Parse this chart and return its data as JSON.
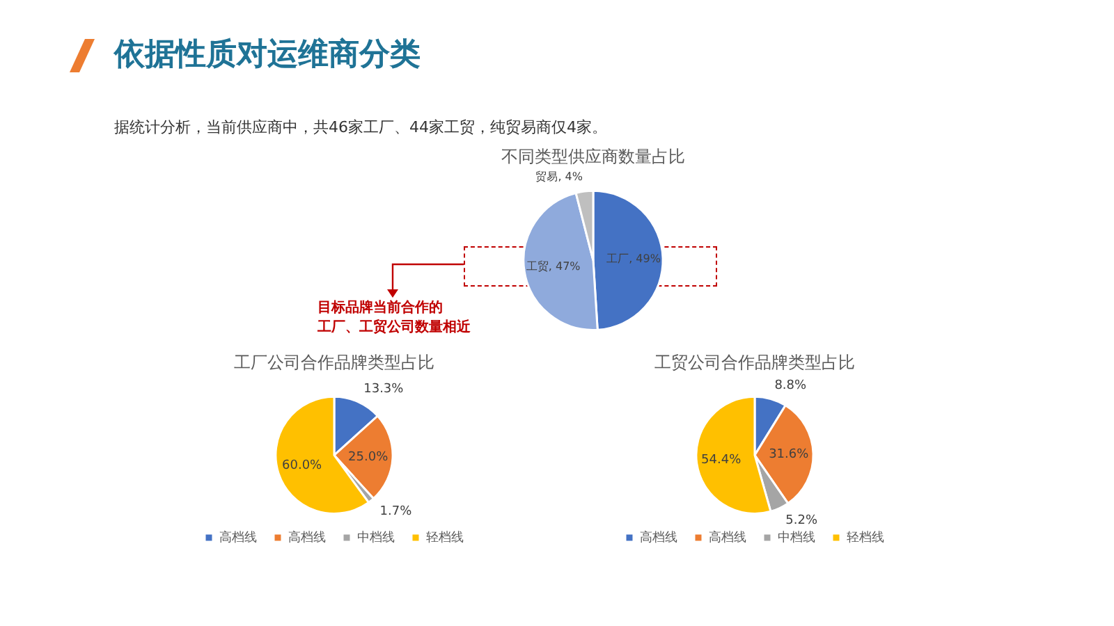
{
  "chart_data": [
    {
      "type": "pie",
      "title": "不同类型供应商数量占比",
      "categories": [
        "工厂",
        "工贸",
        "贸易"
      ],
      "values": [
        49,
        47,
        4
      ],
      "colors": [
        "#4472c4",
        "#8faadc",
        "#bfbfbf"
      ],
      "value_labels": [
        "49%",
        "47%",
        "4%"
      ],
      "legend": false,
      "annotations": [
        "依据性质对运维商分类",
        "据统计分析，当前供应商中，共46家工厂、44家工贸，纯贸易商仅4家。",
        "目标品牌当前合作的",
        "工厂、工贸公司数量相近"
      ]
    },
    {
      "type": "pie",
      "title": "工厂公司合作品牌类型占比",
      "categories": [
        "高档线",
        "高档线",
        "中档线",
        "轻档线"
      ],
      "values": [
        13.3,
        25.0,
        1.7,
        60.0
      ],
      "colors": [
        "#4472c4",
        "#ed7d31",
        "#a5a5a5",
        "#ffc000"
      ],
      "value_labels": [
        "13.3%",
        "25.0%",
        "1.7%",
        "60.0%"
      ],
      "legend": "bottom"
    },
    {
      "type": "pie",
      "title": "工贸公司合作品牌类型占比",
      "categories": [
        "高档线",
        "高档线",
        "中档线",
        "轻档线"
      ],
      "values": [
        8.8,
        31.6,
        5.2,
        54.4
      ],
      "colors": [
        "#4472c4",
        "#ed7d31",
        "#a5a5a5",
        "#ffc000"
      ],
      "value_labels": [
        "8.8%",
        "31.6%",
        "5.2%",
        "54.4%"
      ],
      "legend": "bottom"
    }
  ]
}
